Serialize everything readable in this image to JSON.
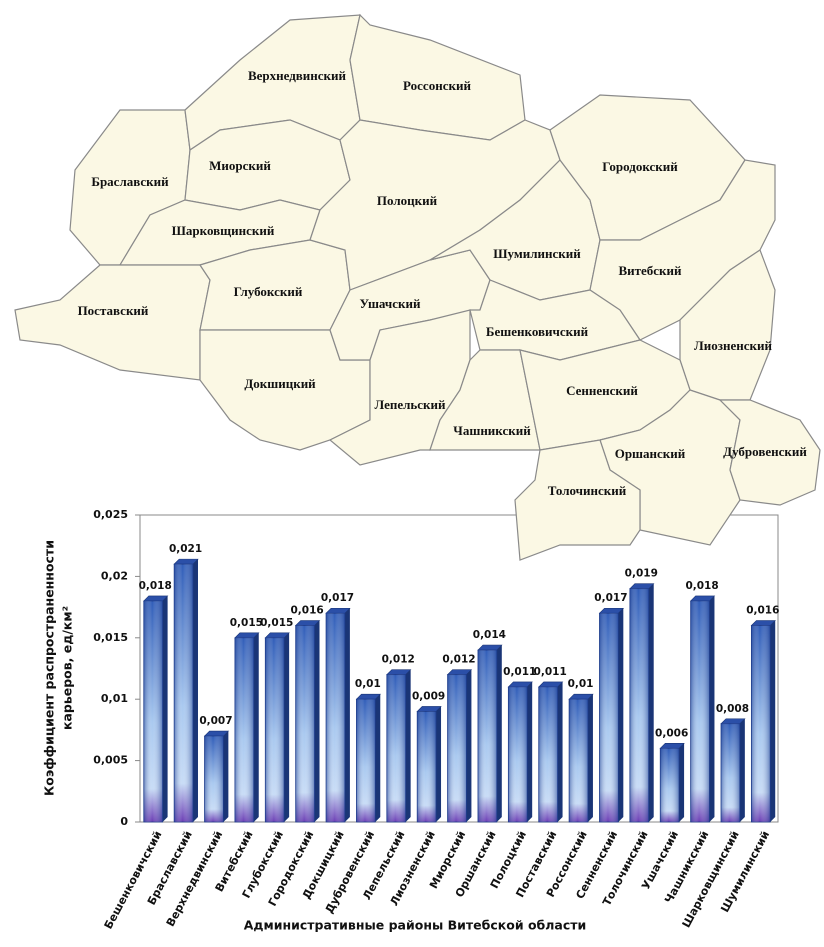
{
  "map": {
    "regions": [
      "Браславский",
      "Верхнедвинский",
      "Россонский",
      "Миорский",
      "Шарковщинский",
      "Поставский",
      "Глубокский",
      "Полоцкий",
      "Докшицкий",
      "Ушачский",
      "Лепельский",
      "Шумилинский",
      "Городокский",
      "Витебский",
      "Лиозненский",
      "Бешенковичский",
      "Чашникский",
      "Сенненский",
      "Оршанский",
      "Дубровенский",
      "Толочинский"
    ]
  },
  "chart_data": {
    "type": "bar",
    "ylabel": [
      "Коэффициент распространенности",
      "карьеров, ед/км²"
    ],
    "xlabel": "Административные районы Витебской области",
    "categories": [
      "Бешенковичский",
      "Браславский",
      "Верхнедвинский",
      "Витебский",
      "Глубокский",
      "Городокский",
      "Докшицкий",
      "Дубровенский",
      "Лепельский",
      "Лиозненский",
      "Миорский",
      "Оршанский",
      "Полоцкий",
      "Поставский",
      "Россонский",
      "Сенненский",
      "Толочинский",
      "Ушачский",
      "Чашникский",
      "Шарковщинский",
      "Шумилинский"
    ],
    "values": [
      0.018,
      0.021,
      0.007,
      0.015,
      0.015,
      0.016,
      0.017,
      0.01,
      0.012,
      0.009,
      0.012,
      0.014,
      0.011,
      0.011,
      0.01,
      0.017,
      0.019,
      0.006,
      0.018,
      0.008,
      0.016
    ],
    "value_labels": [
      "0,018",
      "0,021",
      "0,007",
      "0,015",
      "0,015",
      "0,016",
      "0,017",
      "0,01",
      "0,012",
      "0,009",
      "0,012",
      "0,014",
      "0,011",
      "0,011",
      "0,01",
      "0,017",
      "0,019",
      "0,006",
      "0,018",
      "0,008",
      "0,016"
    ],
    "color": "#2b4fa8",
    "ylim": [
      0,
      0.025
    ],
    "yticks": [
      0,
      {
        "value": 0.005,
        "label": "0,005"
      },
      {
        "value": 0.01,
        "label": "0,01"
      },
      {
        "value": 0.015,
        "label": "0,015"
      },
      {
        "value": 0.02,
        "label": "0,02"
      },
      {
        "value": 0.025,
        "label": "0,025"
      }
    ],
    "grid": false
  }
}
